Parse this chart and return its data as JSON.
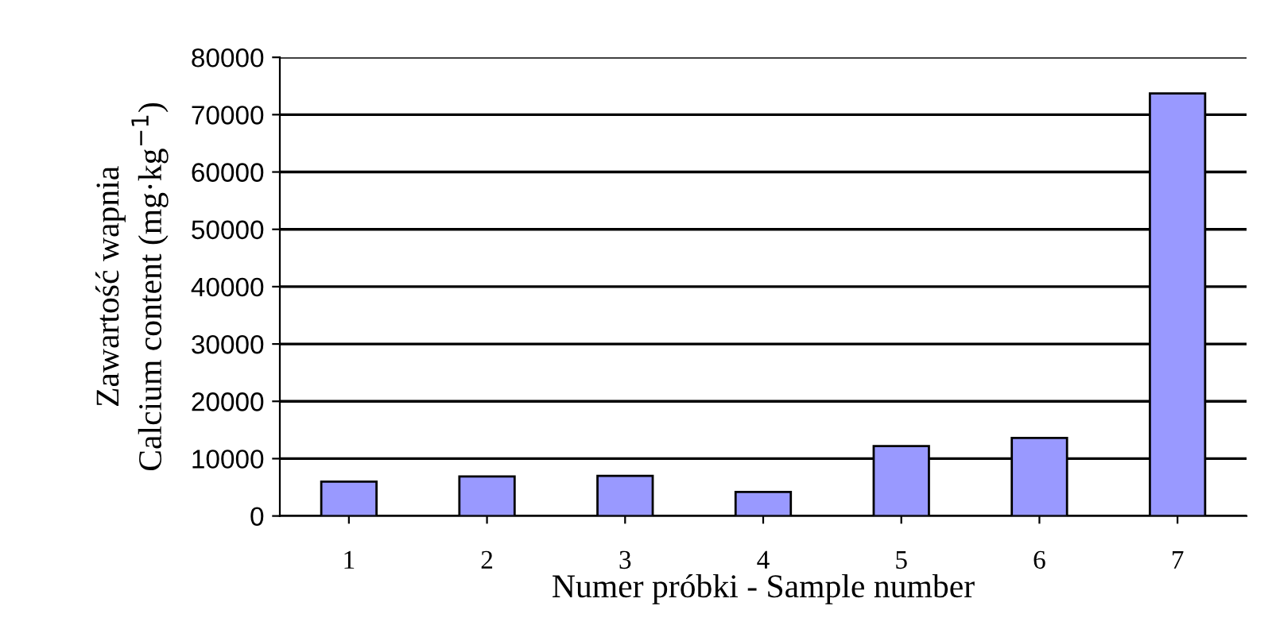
{
  "chart_data": {
    "type": "bar",
    "xlabel": "Numer próbki - Sample number",
    "ylabel": "Zawartość wapnia\nCalcium content (mg·kg$^{−1}$)",
    "categories": [
      "1",
      "2",
      "3",
      "4",
      "5",
      "6",
      "7"
    ],
    "values": [
      6000,
      6900,
      7000,
      4200,
      12200,
      13600,
      73700
    ],
    "color": "#9999ff",
    "ylim": [
      0,
      80000
    ],
    "yticks": [
      0,
      10000,
      20000,
      30000,
      40000,
      50000,
      60000,
      70000,
      80000
    ],
    "grid": "y"
  }
}
